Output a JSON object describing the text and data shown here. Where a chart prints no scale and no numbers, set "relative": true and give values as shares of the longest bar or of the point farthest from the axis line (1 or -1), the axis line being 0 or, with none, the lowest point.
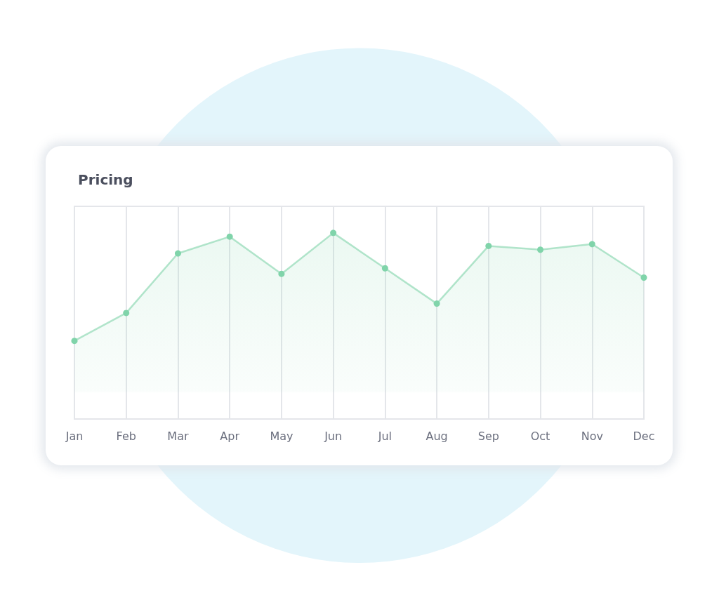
{
  "chart_data": {
    "type": "area",
    "title": "Pricing",
    "categories": [
      "Jan",
      "Feb",
      "Mar",
      "Apr",
      "May",
      "Jun",
      "Jul",
      "Aug",
      "Sep",
      "Oct",
      "Nov",
      "Dec"
    ],
    "values": [
      0.42,
      0.57,
      0.89,
      0.98,
      0.78,
      1,
      0.81,
      0.62,
      0.93,
      0.91,
      0.94,
      0.76
    ],
    "color": "#80d4aa",
    "relative": true,
    "grid": "x",
    "marker": "circle",
    "line_style": "solid"
  }
}
